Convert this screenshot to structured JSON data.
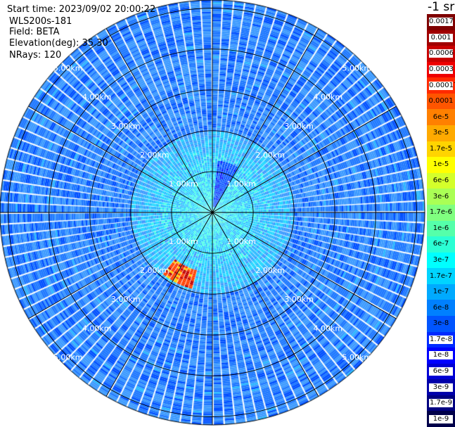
{
  "header": {
    "start_time": "Start time: 2023/09/02 20:00:22",
    "instrument": "WLS200s-181",
    "field": "Field: BETA",
    "elevation": "Elevation(deg): 35.30",
    "nrays": "NRays: 120"
  },
  "colorbar": {
    "title": "-1 sr",
    "labels": [
      "0.0017",
      "0.001",
      "0.0006",
      "0.0003",
      "0.00017",
      "0.0001",
      "6e-5",
      "3e-5",
      "1.7e-5",
      "1e-5",
      "6e-6",
      "3e-6",
      "1.7e-6",
      "1e-6",
      "6e-7",
      "3e-7",
      "1.7e-7",
      "1e-7",
      "6e-8",
      "3e-8",
      "1.7e-8",
      "1e-8",
      "6e-9",
      "3e-9",
      "1.7e-9",
      "1e-9"
    ],
    "colors": [
      "#7f0000",
      "#a00000",
      "#c80000",
      "#ee0000",
      "#ff2a00",
      "#ff5500",
      "#ff8000",
      "#ffaa00",
      "#ffd400",
      "#ffff00",
      "#d4ff2b",
      "#aaff55",
      "#80ff80",
      "#55ffaa",
      "#2bffd4",
      "#00ffff",
      "#00d4ff",
      "#00aaff",
      "#0080ff",
      "#0055ff",
      "#002aff",
      "#0000ff",
      "#0000d4",
      "#0000aa",
      "#000080",
      "#00004a"
    ]
  },
  "chart_data": {
    "type": "heatmap",
    "projection": "polar PPI",
    "field": "BETA",
    "units": "-1 sr",
    "n_rays": 120,
    "range_rings_km": [
      1,
      2,
      3,
      4,
      5
    ],
    "ring_labels": [
      "1.00km",
      "2.00km",
      "3.00km",
      "4.00km",
      "5.00km"
    ],
    "max_range_km": 5.2,
    "azimuth_spokes_deg": [
      0,
      30,
      60,
      90,
      120,
      150,
      180,
      210,
      240,
      270,
      300,
      330
    ],
    "color_scale": "log",
    "value_range": [
      1e-09,
      0.0017
    ],
    "background_level": "1.7e-8",
    "features": [
      {
        "label": "elevated backscatter plume, NNE sector",
        "range_km": [
          0.1,
          1.2
        ],
        "value": "1e-8"
      },
      {
        "label": "high backscatter band, SSW sector",
        "range_km": [
          1.5,
          1.9
        ],
        "value": "0.0003"
      }
    ]
  }
}
